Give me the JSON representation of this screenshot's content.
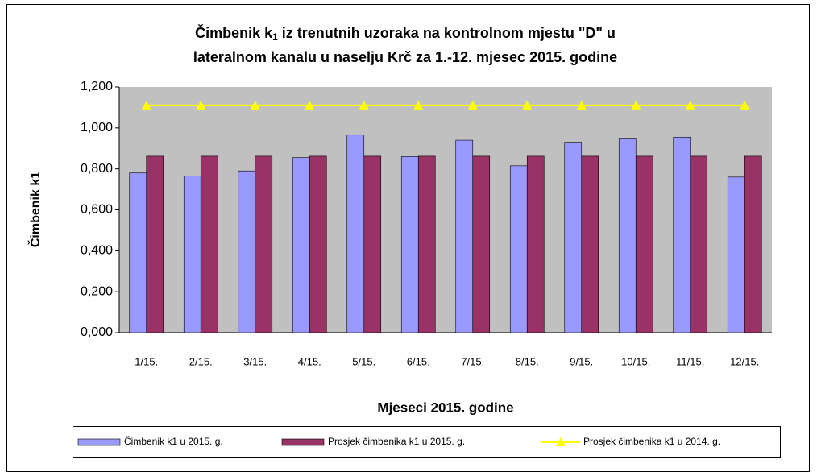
{
  "chart_data": {
    "type": "bar",
    "title": [
      "Čimbenik k",
      "1",
      " iz trenutnih uzoraka na kontrolnom mjestu \"D\" u",
      "lateralnom kanalu u naselju Krč za 1.-12. mjesec 2015. godine"
    ],
    "ylabel": "Čimbenik k1",
    "xlabel": "Mjeseci 2015. godine",
    "categories": [
      "1/15.",
      "2/15.",
      "3/15.",
      "4/15.",
      "5/15.",
      "6/15.",
      "7/15.",
      "8/15.",
      "9/15.",
      "10/15.",
      "11/15.",
      "12/15."
    ],
    "series": [
      {
        "name": "Čimbenik k1 u 2015. g.",
        "color": "#9999ff",
        "type": "bar",
        "values": [
          0.78,
          0.765,
          0.79,
          0.855,
          0.965,
          0.86,
          0.94,
          0.815,
          0.93,
          0.95,
          0.955,
          0.76
        ]
      },
      {
        "name": "Prosjek čimbenika k1 u 2015. g.",
        "color": "#993366",
        "type": "bar",
        "values": [
          0.862,
          0.862,
          0.862,
          0.862,
          0.862,
          0.862,
          0.862,
          0.862,
          0.862,
          0.862,
          0.862,
          0.862
        ]
      },
      {
        "name": "Prosjek čimbenika k1 u 2014. g.",
        "color": "#ffff00",
        "type": "line",
        "values": [
          1.11,
          1.11,
          1.11,
          1.11,
          1.11,
          1.11,
          1.11,
          1.11,
          1.11,
          1.11,
          1.11,
          1.11
        ]
      }
    ],
    "ylim": [
      0,
      1.2
    ],
    "yticks": [
      {
        "value": 0,
        "label": "0,000"
      },
      {
        "value": 0.2,
        "label": "0,200"
      },
      {
        "value": 0.4,
        "label": "0,400"
      },
      {
        "value": 0.6,
        "label": "0,600"
      },
      {
        "value": 0.8,
        "label": "0,800"
      },
      {
        "value": 1.0,
        "label": "1,000"
      },
      {
        "value": 1.2,
        "label": "1,200"
      }
    ],
    "legend": "bottom"
  }
}
